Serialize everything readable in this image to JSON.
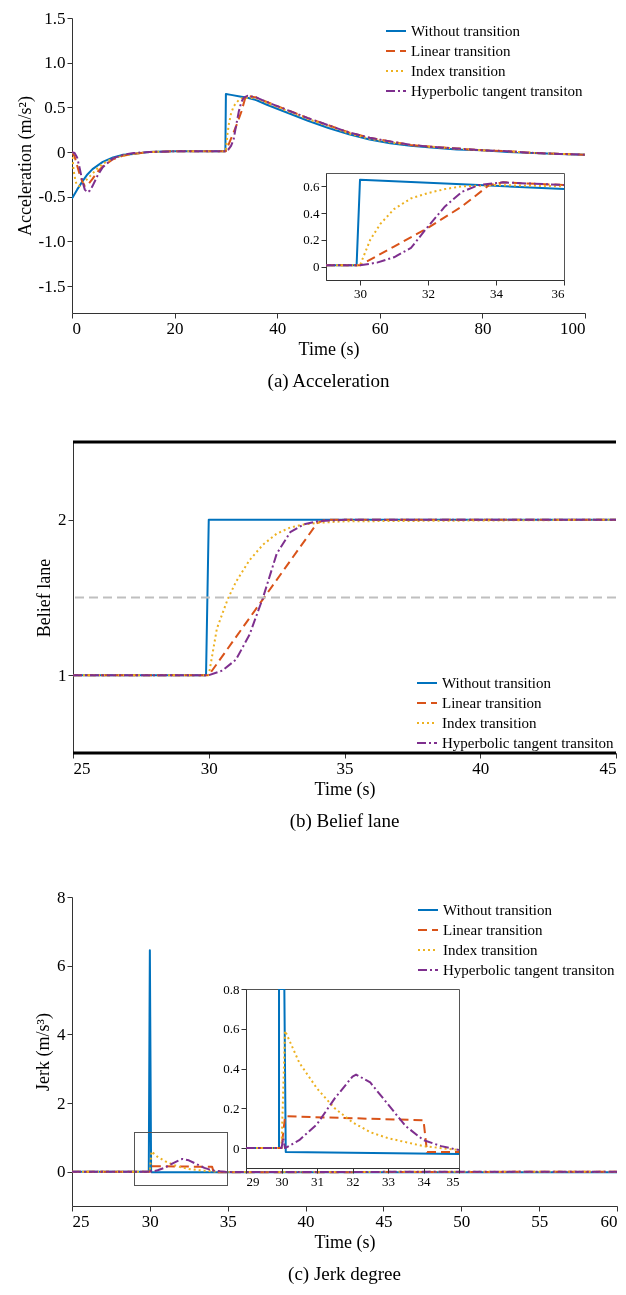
{
  "chart_data": [
    {
      "type": "line",
      "title": "(a) Acceleration",
      "xlabel": "Time (s)",
      "ylabel": "Acceleration (m/s²)",
      "xlim": [
        0,
        100
      ],
      "xticks": [
        0,
        20,
        40,
        60,
        80,
        100
      ],
      "ylim": [
        -1.8,
        1.5
      ],
      "yticks": [
        1.5,
        {
          "value": 1,
          "label": "1.0"
        },
        0.5,
        0,
        -0.5,
        {
          "value": -1,
          "label": "-1.0"
        },
        -1.5
      ],
      "legend": "top right",
      "series": [
        {
          "name": "Without transition",
          "color": "#0072bd",
          "line_style": "solid",
          "x": [
            0,
            1,
            2,
            3,
            4,
            6,
            8,
            10,
            12,
            15,
            20,
            29.9,
            30,
            31,
            33,
            34,
            36,
            38,
            42,
            46,
            50,
            54,
            58,
            62,
            66,
            70,
            75,
            80,
            85,
            90,
            95,
            100
          ],
          "values": [
            -0.52,
            -0.42,
            -0.33,
            -0.25,
            -0.19,
            -0.11,
            -0.06,
            -0.03,
            -0.02,
            0,
            0.01,
            0.01,
            0.65,
            0.64,
            0.62,
            0.61,
            0.58,
            0.53,
            0.44,
            0.35,
            0.27,
            0.2,
            0.14,
            0.1,
            0.07,
            0.05,
            0.03,
            0.02,
            0,
            -0.01,
            -0.02,
            -0.03
          ]
        },
        {
          "name": "Linear transition",
          "color": "#d95319",
          "line_style": "dashed",
          "x": [
            0,
            0.5,
            1,
            1.5,
            2,
            2.5,
            3,
            4,
            5,
            6,
            8,
            10,
            12,
            15,
            20,
            29.9,
            30,
            31,
            32,
            33,
            33.8,
            34.2,
            36,
            38,
            42,
            46,
            50,
            54,
            58,
            62,
            66,
            70,
            75,
            80,
            85,
            90,
            95,
            100
          ],
          "values": [
            0,
            -0.05,
            -0.15,
            -0.25,
            -0.33,
            -0.38,
            -0.37,
            -0.3,
            -0.22,
            -0.16,
            -0.08,
            -0.04,
            -0.02,
            0,
            0.01,
            0.01,
            0.01,
            0.15,
            0.29,
            0.45,
            0.61,
            0.63,
            0.61,
            0.56,
            0.47,
            0.38,
            0.3,
            0.22,
            0.16,
            0.12,
            0.08,
            0.06,
            0.04,
            0.02,
            0.01,
            -0.01,
            -0.02,
            -0.03
          ]
        },
        {
          "name": "Index transition",
          "color": "#edb120",
          "line_style": "dotted",
          "x": [
            0,
            0.3,
            0.7,
            1,
            1.5,
            2,
            3,
            4,
            5,
            6,
            8,
            10,
            12,
            15,
            20,
            29.9,
            30,
            30.3,
            30.6,
            31,
            31.5,
            32,
            32.5,
            33,
            34,
            36,
            38,
            42,
            46,
            50,
            54,
            58,
            62,
            66,
            70,
            75,
            80,
            85,
            90,
            95,
            100
          ],
          "values": [
            0,
            -0.2,
            -0.33,
            -0.37,
            -0.38,
            -0.36,
            -0.3,
            -0.24,
            -0.18,
            -0.13,
            -0.07,
            -0.04,
            -0.02,
            0,
            0.01,
            0.01,
            0.01,
            0.2,
            0.32,
            0.43,
            0.51,
            0.55,
            0.58,
            0.6,
            0.61,
            0.6,
            0.55,
            0.46,
            0.37,
            0.29,
            0.21,
            0.15,
            0.11,
            0.08,
            0.06,
            0.04,
            0.02,
            0.01,
            -0.01,
            -0.02,
            -0.03
          ]
        },
        {
          "name": "Hyperbolic tangent transiton",
          "color": "#7e2f8e",
          "line_style": "dashdot",
          "x": [
            0,
            0.5,
            1,
            1.5,
            2,
            2.5,
            3,
            3.5,
            4,
            5,
            6,
            8,
            10,
            12,
            15,
            20,
            29.9,
            30,
            30.5,
            31,
            31.5,
            32,
            32.5,
            33,
            33.5,
            34.2,
            36,
            38,
            42,
            46,
            50,
            54,
            58,
            62,
            66,
            70,
            75,
            80,
            85,
            90,
            95,
            100
          ],
          "values": [
            0,
            -0.01,
            -0.06,
            -0.18,
            -0.32,
            -0.42,
            -0.45,
            -0.43,
            -0.38,
            -0.26,
            -0.17,
            -0.07,
            -0.03,
            -0.01,
            0,
            0.01,
            0.01,
            0.01,
            0.03,
            0.07,
            0.14,
            0.3,
            0.45,
            0.56,
            0.61,
            0.63,
            0.61,
            0.56,
            0.47,
            0.38,
            0.3,
            0.22,
            0.16,
            0.12,
            0.08,
            0.06,
            0.04,
            0.02,
            0.01,
            -0.01,
            -0.02,
            -0.03
          ]
        }
      ]
    },
    {
      "type": "line",
      "xlim": [
        29,
        36
      ],
      "xticks": [
        30,
        32,
        34,
        36
      ],
      "ylim": [
        -0.1,
        0.7
      ],
      "yticks": [
        0,
        0.2,
        0.4,
        0.6
      ],
      "series": [
        {
          "color": "#0072bd",
          "line_style": "solid",
          "x": [
            29,
            29.9,
            30,
            33.5,
            36
          ],
          "values": [
            0.01,
            0.01,
            0.65,
            0.61,
            0.58
          ]
        },
        {
          "color": "#d95319",
          "line_style": "dashed",
          "x": [
            29,
            30,
            31,
            32,
            33,
            33.8,
            34.2,
            36
          ],
          "values": [
            0.01,
            0.01,
            0.15,
            0.29,
            0.45,
            0.61,
            0.63,
            0.61
          ]
        },
        {
          "color": "#edb120",
          "line_style": "dotted",
          "x": [
            29,
            30,
            30.3,
            30.6,
            31,
            31.5,
            32,
            32.5,
            33,
            34,
            36
          ],
          "values": [
            0.01,
            0.01,
            0.2,
            0.32,
            0.43,
            0.51,
            0.55,
            0.58,
            0.6,
            0.61,
            0.6
          ]
        },
        {
          "color": "#7e2f8e",
          "line_style": "dashdot",
          "x": [
            29,
            30,
            30.5,
            31,
            31.5,
            32,
            32.5,
            33,
            33.5,
            34.2,
            36
          ],
          "values": [
            0.01,
            0.01,
            0.03,
            0.07,
            0.14,
            0.3,
            0.45,
            0.56,
            0.61,
            0.63,
            0.61
          ]
        }
      ]
    },
    {
      "type": "line",
      "title": "(b) Belief lane",
      "xlabel": "Time (s)",
      "ylabel": "Belief lane",
      "xlim": [
        25,
        45
      ],
      "xticks": [
        25,
        30,
        35,
        40,
        45
      ],
      "ylim": [
        0.5,
        2.5
      ],
      "yticks": [
        1,
        2
      ],
      "legend": "bottom right",
      "ref_lines": [
        {
          "axis": "y",
          "value": 2.5,
          "color": "#000000"
        },
        {
          "axis": "y",
          "value": 0.5,
          "color": "#000000"
        },
        {
          "axis": "y",
          "value": 1.5,
          "color": "#bfbfbf",
          "line_style": "dashed"
        }
      ],
      "series": [
        {
          "name": "Without transition",
          "color": "#0072bd",
          "line_style": "solid",
          "x": [
            25,
            29.9,
            30,
            45
          ],
          "values": [
            1,
            1,
            2,
            2
          ]
        },
        {
          "name": "Linear transition",
          "color": "#d95319",
          "line_style": "dashed",
          "x": [
            25,
            30,
            34,
            34.3,
            45
          ],
          "values": [
            1,
            1,
            1.98,
            2,
            2
          ]
        },
        {
          "name": "Index transition",
          "color": "#edb120",
          "line_style": "dotted",
          "x": [
            25,
            30,
            30.3,
            30.7,
            31,
            31.5,
            32,
            32.5,
            33,
            33.5,
            34,
            35,
            45
          ],
          "values": [
            1,
            1,
            1.3,
            1.49,
            1.6,
            1.74,
            1.84,
            1.91,
            1.95,
            1.97,
            1.98,
            1.99,
            2
          ]
        },
        {
          "name": "Hyperbolic tangent transiton",
          "color": "#7e2f8e",
          "line_style": "dashdot",
          "x": [
            25,
            30,
            30.5,
            31,
            31.5,
            32,
            32.5,
            33,
            33.5,
            34,
            35,
            45
          ],
          "values": [
            1,
            1,
            1.03,
            1.1,
            1.26,
            1.5,
            1.78,
            1.92,
            1.97,
            1.99,
            2,
            2
          ]
        }
      ]
    },
    {
      "type": "line",
      "title": "(c) Jerk degree",
      "xlabel": "Time (s)",
      "ylabel": "Jerk (m/s³)",
      "xlim": [
        25,
        60
      ],
      "xticks": [
        25,
        30,
        35,
        40,
        45,
        50,
        55,
        60
      ],
      "ylim": [
        -1,
        8
      ],
      "yticks": [
        0,
        2,
        4,
        6,
        8
      ],
      "legend": "top right",
      "series": [
        {
          "name": "Without transition",
          "color": "#0072bd",
          "line_style": "solid",
          "x": [
            25,
            29.93,
            30,
            30.08,
            30.12,
            60
          ],
          "values": [
            0,
            0,
            6.45,
            0,
            -0.02,
            -0.02
          ]
        },
        {
          "name": "Linear transition",
          "color": "#d95319",
          "line_style": "dashed",
          "x": [
            25,
            30,
            30.1,
            34,
            34.1,
            35,
            60
          ],
          "values": [
            0,
            0,
            0.16,
            0.14,
            -0.02,
            -0.02,
            0
          ]
        },
        {
          "name": "Index transition",
          "color": "#edb120",
          "line_style": "dotted",
          "x": [
            25,
            30,
            30.1,
            30.5,
            31,
            31.5,
            32,
            32.5,
            33,
            33.5,
            34,
            35,
            60
          ],
          "values": [
            0,
            0,
            0.59,
            0.43,
            0.3,
            0.2,
            0.13,
            0.08,
            0.05,
            0.03,
            0.01,
            -0.01,
            0
          ]
        },
        {
          "name": "Hyperbolic tangent transiton",
          "color": "#7e2f8e",
          "line_style": "dashdot",
          "x": [
            25,
            30,
            30.05,
            30.1,
            30.5,
            31,
            31.5,
            32,
            32.1,
            32.5,
            33,
            33.5,
            34,
            34.5,
            35,
            60
          ],
          "values": [
            0,
            0,
            0.05,
            0,
            0.04,
            0.12,
            0.25,
            0.36,
            0.37,
            0.33,
            0.22,
            0.11,
            0.04,
            0.01,
            -0.01,
            0
          ]
        }
      ]
    },
    {
      "type": "line",
      "xlim": [
        29,
        35
      ],
      "xticks": [
        29,
        30,
        31,
        32,
        33,
        34,
        35
      ],
      "ylim": [
        -0.1,
        0.8
      ],
      "yticks": [
        0,
        0.2,
        0.4,
        0.6,
        0.8
      ],
      "series": [
        {
          "color": "#0072bd",
          "line_style": "solid",
          "x": [
            29,
            29.93,
            29.93,
            30.0,
            30.08,
            30.12,
            35
          ],
          "values": [
            0,
            0,
            0.8,
            0.8,
            0.8,
            -0.02,
            -0.03
          ]
        },
        {
          "color": "#d95319",
          "line_style": "dashed",
          "x": [
            29,
            30,
            30.1,
            34,
            34.1,
            35
          ],
          "values": [
            0,
            0,
            0.16,
            0.14,
            -0.02,
            -0.02
          ]
        },
        {
          "color": "#edb120",
          "line_style": "dotted",
          "x": [
            29,
            30,
            30.1,
            30.5,
            31,
            31.5,
            32,
            32.5,
            33,
            33.5,
            34,
            35
          ],
          "values": [
            0,
            0,
            0.59,
            0.43,
            0.3,
            0.2,
            0.13,
            0.08,
            0.05,
            0.03,
            0.01,
            -0.01
          ]
        },
        {
          "color": "#7e2f8e",
          "line_style": "dashdot",
          "x": [
            29,
            30,
            30.05,
            30.1,
            30.5,
            31,
            31.5,
            32,
            32.1,
            32.5,
            33,
            33.5,
            34,
            34.5,
            35
          ],
          "values": [
            0,
            0,
            0.05,
            0,
            0.04,
            0.12,
            0.25,
            0.36,
            0.37,
            0.33,
            0.22,
            0.11,
            0.04,
            0.01,
            -0.01
          ]
        }
      ]
    }
  ]
}
